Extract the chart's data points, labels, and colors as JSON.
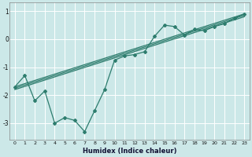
{
  "xlabel": "Humidex (Indice chaleur)",
  "ylabel": "",
  "bg_color": "#cce8e8",
  "grid_color": "#ffffff",
  "line_color": "#2e7d6e",
  "x_min": -0.5,
  "x_max": 23.5,
  "y_min": -3.6,
  "y_max": 1.3,
  "yticks": [
    -3,
    -2,
    -1,
    0,
    1
  ],
  "xticks": [
    0,
    1,
    2,
    3,
    4,
    5,
    6,
    7,
    8,
    9,
    10,
    11,
    12,
    13,
    14,
    15,
    16,
    17,
    18,
    19,
    20,
    21,
    22,
    23
  ],
  "series1_x": [
    0,
    1,
    2,
    3,
    4,
    5,
    6,
    7,
    8,
    9,
    10,
    11,
    12,
    13,
    14,
    15,
    16,
    17,
    18,
    19,
    20,
    21,
    22,
    23
  ],
  "series1_y": [
    -1.7,
    -1.3,
    -2.2,
    -1.85,
    -3.0,
    -2.8,
    -2.9,
    -3.3,
    -2.55,
    -1.8,
    -0.75,
    -0.6,
    -0.55,
    -0.45,
    0.1,
    0.5,
    0.45,
    0.15,
    0.35,
    0.3,
    0.45,
    0.55,
    0.75,
    0.9
  ],
  "series2_x": [
    0,
    23
  ],
  "series2_y": [
    -1.7,
    0.9
  ],
  "series3_x": [
    0,
    23
  ],
  "series3_y": [
    -1.75,
    0.85
  ],
  "series4_x": [
    0,
    23
  ],
  "series4_y": [
    -1.8,
    0.8
  ]
}
